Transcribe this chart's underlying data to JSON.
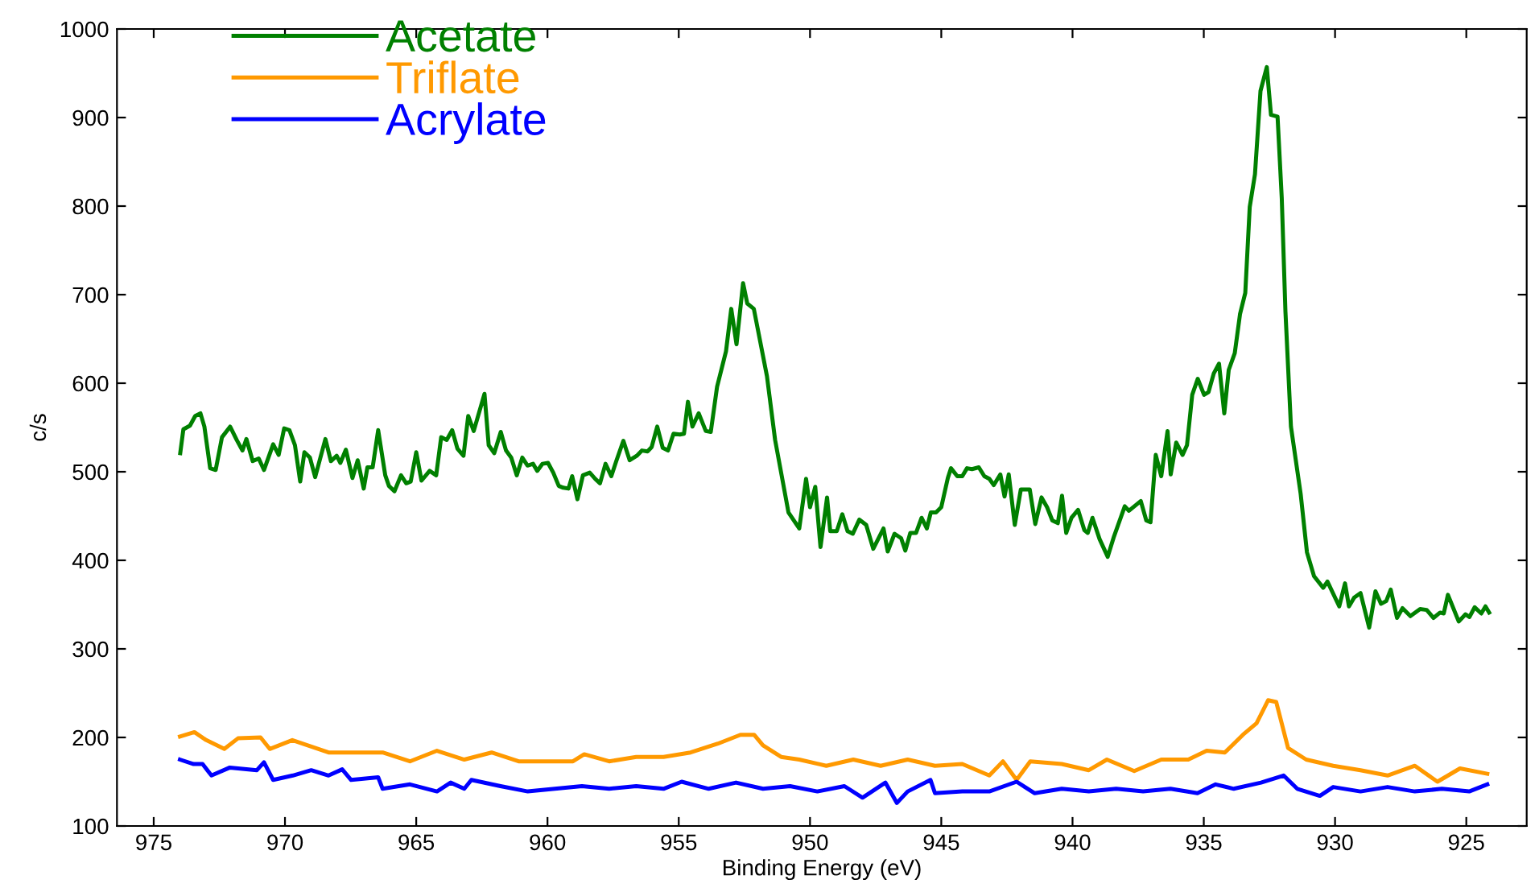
{
  "chart_data": {
    "type": "line",
    "xlabel": "Binding Energy (eV)",
    "ylabel": "c/s",
    "xlim": [
      976.4,
      922.7
    ],
    "xticks": [
      975,
      970,
      965,
      960,
      955,
      950,
      945,
      940,
      935,
      930,
      925
    ],
    "ylim": [
      100,
      1000
    ],
    "yticks": [
      100,
      200,
      300,
      400,
      500,
      600,
      700,
      800,
      900,
      1000
    ],
    "grid": false,
    "legend": "top left",
    "marker": "none",
    "line_style": "solid",
    "series": [
      {
        "name": "Acetate",
        "color": "#008000",
        "x": [
          973.99,
          973.87,
          973.62,
          973.42,
          973.22,
          973.07,
          972.85,
          972.64,
          972.4,
          972.09,
          971.84,
          971.62,
          971.47,
          971.23,
          971.0,
          970.8,
          970.45,
          970.24,
          970.03,
          969.83,
          969.62,
          969.42,
          969.26,
          969.05,
          968.85,
          968.46,
          968.25,
          968.03,
          967.89,
          967.68,
          967.43,
          967.23,
          967.0,
          966.86,
          966.66,
          966.45,
          966.18,
          966.04,
          965.83,
          965.58,
          965.38,
          965.21,
          965.0,
          964.8,
          964.49,
          964.24,
          964.05,
          963.84,
          963.63,
          963.43,
          963.2,
          963.02,
          962.81,
          962.4,
          962.24,
          962.03,
          961.78,
          961.58,
          961.38,
          961.17,
          960.96,
          960.76,
          960.55,
          960.39,
          960.19,
          959.98,
          959.78,
          959.57,
          959.4,
          959.2,
          959.06,
          958.86,
          958.65,
          958.39,
          958.18,
          958.0,
          957.79,
          957.57,
          957.38,
          957.11,
          956.87,
          956.6,
          956.4,
          956.19,
          956.03,
          955.82,
          955.61,
          955.41,
          955.2,
          954.96,
          954.8,
          954.65,
          954.48,
          954.24,
          953.97,
          953.78,
          953.54,
          953.2,
          953.0,
          952.8,
          952.55,
          952.39,
          952.14,
          951.64,
          951.33,
          950.82,
          950.41,
          950.15,
          950.0,
          949.8,
          949.6,
          949.35,
          949.23,
          948.98,
          948.77,
          948.57,
          948.37,
          948.12,
          947.86,
          947.59,
          947.2,
          947.04,
          946.78,
          946.53,
          946.37,
          946.18,
          945.96,
          945.75,
          945.55,
          945.4,
          945.2,
          945.0,
          944.75,
          944.63,
          944.39,
          944.2,
          944.02,
          943.83,
          943.57,
          943.36,
          943.17,
          943.0,
          942.75,
          942.59,
          942.43,
          942.2,
          941.97,
          941.63,
          941.42,
          941.18,
          940.97,
          940.77,
          940.56,
          940.4,
          940.24,
          940.04,
          939.79,
          939.55,
          939.42,
          939.24,
          938.97,
          938.66,
          938.42,
          938.01,
          937.85,
          937.4,
          937.19,
          937.03,
          936.83,
          936.62,
          936.38,
          936.26,
          936.05,
          935.81,
          935.64,
          935.44,
          935.23,
          934.99,
          934.82,
          934.62,
          934.42,
          934.22,
          934.05,
          933.82,
          933.62,
          933.42,
          933.25,
          933.05,
          932.84,
          932.6,
          932.44,
          932.19,
          932.03,
          931.89,
          931.68,
          931.31,
          931.07,
          930.8,
          930.45,
          930.29,
          929.84,
          929.62,
          929.47,
          929.27,
          929.03,
          928.7,
          928.46,
          928.25,
          928.05,
          927.88,
          927.64,
          927.43,
          927.13,
          926.76,
          926.51,
          926.25,
          926.0,
          925.86,
          925.7,
          925.29,
          925.03,
          924.88,
          924.68,
          924.43,
          924.27,
          924.13
        ],
        "values": [
          521,
          548,
          552,
          563,
          566,
          551,
          504,
          502,
          539,
          551,
          536,
          524,
          537,
          512,
          515,
          502,
          531,
          519,
          549,
          547,
          530,
          489,
          522,
          516,
          494,
          537,
          512,
          518,
          510,
          525,
          493,
          513,
          481,
          505,
          505,
          547,
          496,
          484,
          478,
          496,
          487,
          489,
          522,
          490,
          501,
          496,
          539,
          536,
          547,
          526,
          518,
          563,
          546,
          588,
          530,
          521,
          545,
          524,
          516,
          496,
          516,
          507,
          509,
          501,
          509,
          510,
          499,
          484,
          482,
          481,
          495,
          469,
          496,
          499,
          492,
          487,
          509,
          495,
          512,
          535,
          513,
          518,
          524,
          523,
          528,
          551,
          527,
          524,
          543,
          542,
          543,
          579,
          551,
          566,
          546,
          545,
          596,
          636,
          684,
          644,
          713,
          690,
          684,
          608,
          536,
          454,
          436,
          492,
          460,
          483,
          415,
          471,
          433,
          433,
          452,
          433,
          430,
          446,
          440,
          413,
          436,
          410,
          430,
          425,
          411,
          431,
          431,
          448,
          436,
          454,
          454,
          460,
          493,
          504,
          495,
          495,
          504,
          503,
          505,
          495,
          492,
          485,
          497,
          472,
          497,
          440,
          480,
          480,
          441,
          471,
          460,
          445,
          442,
          473,
          431,
          448,
          457,
          434,
          431,
          448,
          424,
          404,
          427,
          461,
          456,
          467,
          445,
          443,
          519,
          495,
          546,
          497,
          533,
          519,
          530,
          587,
          605,
          587,
          590,
          611,
          622,
          566,
          615,
          634,
          678,
          702,
          799,
          836,
          930,
          957,
          903,
          901,
          809,
          681,
          551,
          475,
          409,
          382,
          369,
          376,
          348,
          374,
          348,
          358,
          363,
          324,
          365,
          351,
          354,
          367,
          335,
          346,
          337,
          345,
          344,
          335,
          341,
          340,
          361,
          331,
          339,
          336,
          347,
          340,
          348,
          341
        ]
      },
      {
        "name": "Triflate",
        "color": "#ff9900",
        "x": [
          974.0,
          973.45,
          973.0,
          972.31,
          971.79,
          970.93,
          970.58,
          969.72,
          968.34,
          966.28,
          965.24,
          964.21,
          963.17,
          962.13,
          961.1,
          960.06,
          959.03,
          958.6,
          957.65,
          956.62,
          955.58,
          954.55,
          953.51,
          952.65,
          952.13,
          951.79,
          951.1,
          950.41,
          949.38,
          948.35,
          947.31,
          946.28,
          945.24,
          944.2,
          943.17,
          942.65,
          942.13,
          941.61,
          940.41,
          939.38,
          938.69,
          937.65,
          936.62,
          935.59,
          934.89,
          934.2,
          933.51,
          932.99,
          932.55,
          932.24,
          931.79,
          931.1,
          930.07,
          929.03,
          928.0,
          926.96,
          926.1,
          925.24,
          924.2
        ],
        "values": [
          201,
          206,
          197,
          187,
          199,
          200,
          187,
          197,
          183,
          183,
          173,
          185,
          175,
          183,
          173,
          173,
          173,
          181,
          173,
          178,
          178,
          183,
          193,
          203,
          203,
          191,
          178,
          175,
          168,
          175,
          168,
          175,
          168,
          170,
          157,
          173,
          152,
          173,
          170,
          163,
          175,
          162,
          175,
          175,
          185,
          183,
          203,
          216,
          242,
          240,
          188,
          175,
          168,
          163,
          157,
          168,
          150,
          165,
          159
        ]
      },
      {
        "name": "Acrylate",
        "color": "#0000ff",
        "x": [
          974.0,
          973.48,
          973.14,
          972.8,
          972.1,
          971.07,
          970.8,
          970.45,
          969.7,
          969.0,
          968.34,
          967.82,
          967.48,
          966.45,
          966.28,
          965.24,
          964.21,
          963.69,
          963.17,
          962.9,
          961.79,
          960.75,
          959.72,
          958.69,
          957.65,
          956.62,
          955.58,
          954.89,
          953.86,
          952.82,
          951.79,
          950.76,
          949.72,
          948.69,
          948.0,
          947.13,
          946.69,
          946.28,
          945.41,
          945.24,
          944.2,
          943.17,
          942.13,
          941.44,
          940.41,
          939.38,
          938.34,
          937.31,
          936.27,
          935.24,
          934.55,
          933.86,
          932.82,
          931.96,
          931.44,
          930.58,
          930.07,
          929.03,
          928.0,
          926.96,
          925.93,
          924.89,
          924.2
        ],
        "values": [
          175,
          170,
          170,
          157,
          166,
          163,
          172,
          152,
          157,
          163,
          157,
          164,
          152,
          155,
          142,
          147,
          139,
          149,
          142,
          152,
          145,
          139,
          142,
          145,
          142,
          145,
          142,
          150,
          142,
          149,
          142,
          145,
          139,
          145,
          132,
          149,
          126,
          139,
          152,
          137,
          139,
          139,
          150,
          137,
          142,
          139,
          142,
          139,
          142,
          137,
          147,
          142,
          149,
          157,
          142,
          134,
          144,
          139,
          144,
          139,
          142,
          139,
          147
        ]
      }
    ]
  }
}
